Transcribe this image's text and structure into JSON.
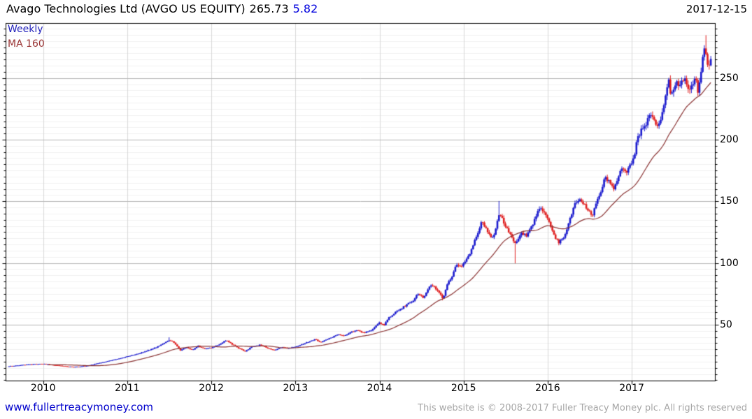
{
  "header": {
    "title": "Avago Technologies Ltd (AVGO US EQUITY)",
    "price": "265.73",
    "change": "5.82",
    "date": "2017-12-15"
  },
  "legend": {
    "frequency": "Weekly",
    "ma": "MA 160"
  },
  "footer": {
    "link": "www.fullertreacymoney.com",
    "copyright": "This website is © 2008-2017 Fuller Treacy Money plc. All rights reserved"
  },
  "colors": {
    "candle_up": "#1a1ace",
    "candle_down": "#e02020",
    "ma_line": "#8b3434",
    "grid_minor": "#f0f0f0",
    "grid_major": "#b5b5b5",
    "grid_year": "#d9d9d9",
    "axis": "#000000",
    "change_text": "#0000dd",
    "link_text": "#0000cc",
    "copyright_text": "#a6a6a6"
  },
  "chart_data": {
    "type": "candlestick",
    "frequency": "weekly",
    "title": "Avago Technologies Ltd (AVGO US EQUITY)",
    "last_close": 265.73,
    "change": 5.82,
    "as_of_date": "2017-12-15",
    "ylabel": "",
    "xlabel": "",
    "y_ticks": [
      50,
      100,
      150,
      200,
      250
    ],
    "y_minor_step": 5,
    "y_minor_max": 290,
    "y_range_approx": [
      4,
      295
    ],
    "x_ticks": [
      2010,
      2011,
      2012,
      2013,
      2014,
      2015,
      2016,
      2017
    ],
    "x_range_years": [
      2009.59,
      2017.94
    ],
    "moving_average": {
      "label": "MA 160",
      "window_weeks": 32,
      "draw_from_week": 24
    },
    "anchors_weekly_close": [
      [
        2009.59,
        16.5
      ],
      [
        2009.82,
        18
      ],
      [
        2010.0,
        18.5
      ],
      [
        2010.19,
        17
      ],
      [
        2010.36,
        15.8
      ],
      [
        2010.53,
        17
      ],
      [
        2010.69,
        19.5
      ],
      [
        2010.86,
        22
      ],
      [
        2011.0,
        24.5
      ],
      [
        2011.19,
        28
      ],
      [
        2011.38,
        33
      ],
      [
        2011.5,
        38
      ],
      [
        2011.55,
        36
      ],
      [
        2011.63,
        29.5
      ],
      [
        2011.7,
        32
      ],
      [
        2011.77,
        29.5
      ],
      [
        2011.84,
        33
      ],
      [
        2011.9,
        31
      ],
      [
        2012.0,
        31.5
      ],
      [
        2012.08,
        34
      ],
      [
        2012.17,
        37.5
      ],
      [
        2012.23,
        35
      ],
      [
        2012.31,
        31.5
      ],
      [
        2012.4,
        28.5
      ],
      [
        2012.48,
        32.5
      ],
      [
        2012.58,
        34
      ],
      [
        2012.67,
        31
      ],
      [
        2012.75,
        29.5
      ],
      [
        2012.83,
        32
      ],
      [
        2012.91,
        31
      ],
      [
        2013.0,
        32.5
      ],
      [
        2013.08,
        34.5
      ],
      [
        2013.16,
        36.5
      ],
      [
        2013.23,
        38.5
      ],
      [
        2013.3,
        36
      ],
      [
        2013.36,
        38
      ],
      [
        2013.43,
        40
      ],
      [
        2013.5,
        42.5
      ],
      [
        2013.58,
        41
      ],
      [
        2013.65,
        44
      ],
      [
        2013.73,
        46
      ],
      [
        2013.81,
        43.5
      ],
      [
        2013.9,
        46
      ],
      [
        2013.99,
        52
      ],
      [
        2014.05,
        50
      ],
      [
        2014.11,
        56
      ],
      [
        2014.18,
        60
      ],
      [
        2014.25,
        63
      ],
      [
        2014.31,
        66
      ],
      [
        2014.4,
        70
      ],
      [
        2014.45,
        75
      ],
      [
        2014.52,
        72
      ],
      [
        2014.6,
        83
      ],
      [
        2014.66,
        80
      ],
      [
        2014.71,
        76
      ],
      [
        2014.75,
        71
      ],
      [
        2014.81,
        84
      ],
      [
        2014.86,
        90
      ],
      [
        2014.91,
        100
      ],
      [
        2014.96,
        97
      ],
      [
        2015.0,
        100
      ],
      [
        2015.06,
        106
      ],
      [
        2015.11,
        115
      ],
      [
        2015.16,
        124
      ],
      [
        2015.21,
        134
      ],
      [
        2015.24,
        130
      ],
      [
        2015.28,
        126
      ],
      [
        2015.33,
        120
      ],
      [
        2015.37,
        123
      ],
      [
        2015.39,
        134
      ],
      [
        2015.43,
        140
      ],
      [
        2015.48,
        132
      ],
      [
        2015.52,
        127
      ],
      [
        2015.57,
        122
      ],
      [
        2015.6,
        115
      ],
      [
        2015.64,
        120
      ],
      [
        2015.69,
        125
      ],
      [
        2015.74,
        122
      ],
      [
        2015.79,
        128
      ],
      [
        2015.84,
        135
      ],
      [
        2015.89,
        146
      ],
      [
        2015.93,
        143
      ],
      [
        2015.98,
        140
      ],
      [
        2016.03,
        130
      ],
      [
        2016.08,
        122
      ],
      [
        2016.13,
        117
      ],
      [
        2016.18,
        120
      ],
      [
        2016.23,
        128
      ],
      [
        2016.28,
        140
      ],
      [
        2016.33,
        150
      ],
      [
        2016.38,
        152
      ],
      [
        2016.43,
        148
      ],
      [
        2016.48,
        143
      ],
      [
        2016.53,
        139
      ],
      [
        2016.58,
        150
      ],
      [
        2016.63,
        158
      ],
      [
        2016.68,
        170
      ],
      [
        2016.73,
        166
      ],
      [
        2016.78,
        160
      ],
      [
        2016.83,
        170
      ],
      [
        2016.88,
        177
      ],
      [
        2016.93,
        173
      ],
      [
        2016.98,
        180
      ],
      [
        2017.03,
        188
      ],
      [
        2017.06,
        200
      ],
      [
        2017.11,
        208
      ],
      [
        2017.16,
        212
      ],
      [
        2017.21,
        220
      ],
      [
        2017.26,
        216
      ],
      [
        2017.31,
        210
      ],
      [
        2017.35,
        218
      ],
      [
        2017.38,
        228
      ],
      [
        2017.41,
        240
      ],
      [
        2017.44,
        252
      ],
      [
        2017.46,
        234
      ],
      [
        2017.49,
        240
      ],
      [
        2017.53,
        246
      ],
      [
        2017.56,
        242
      ],
      [
        2017.59,
        248
      ],
      [
        2017.63,
        250
      ],
      [
        2017.66,
        244
      ],
      [
        2017.69,
        240
      ],
      [
        2017.73,
        246
      ],
      [
        2017.76,
        252
      ],
      [
        2017.78,
        240
      ],
      [
        2017.81,
        247
      ],
      [
        2017.83,
        262
      ],
      [
        2017.86,
        276
      ],
      [
        2017.88,
        270
      ],
      [
        2017.91,
        258
      ],
      [
        2017.94,
        265.73
      ]
    ],
    "wick_extremes": [
      {
        "t": 2011.5,
        "high": 40
      },
      {
        "t": 2014.75,
        "low": 70
      },
      {
        "t": 2015.41,
        "high": 150.5
      },
      {
        "t": 2015.6,
        "low": 100
      },
      {
        "t": 2017.88,
        "high": 285
      }
    ]
  }
}
